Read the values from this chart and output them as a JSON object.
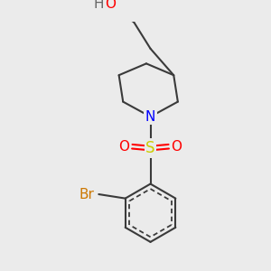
{
  "background_color": "#ebebeb",
  "bond_color": "#3a3a3a",
  "atom_colors": {
    "O": "#ff0000",
    "N": "#0000ff",
    "S": "#cccc00",
    "Br": "#cc7700",
    "H": "#666666"
  },
  "lw": 1.5,
  "font_size": 11
}
